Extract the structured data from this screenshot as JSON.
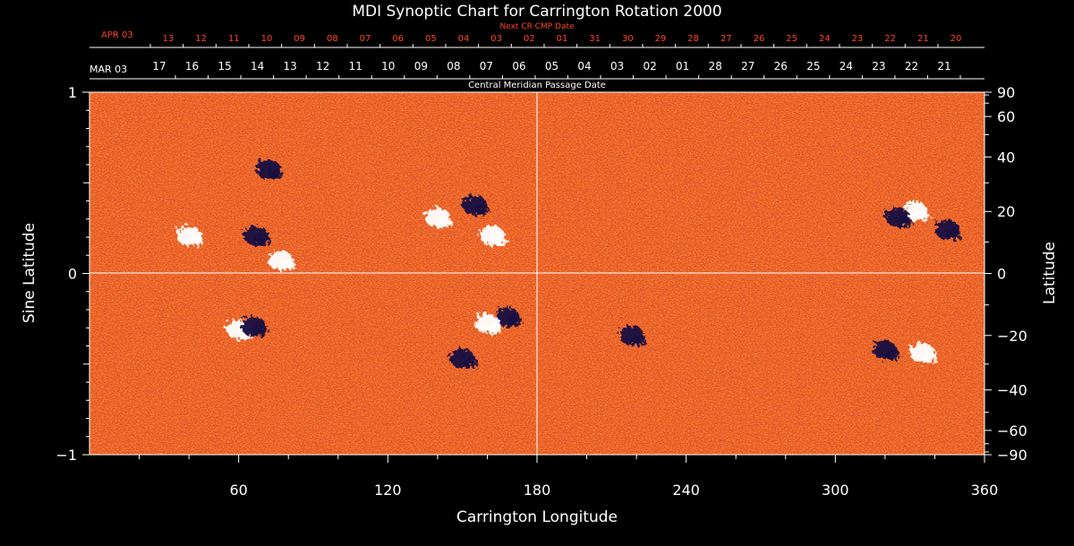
{
  "chart_data": {
    "type": "heatmap",
    "title": "MDI Synoptic Chart for Carrington Rotation 2000",
    "xlabel": "Carrington Longitude",
    "ylabel_left": "Sine Latitude",
    "ylabel_right": "Latitude",
    "top_label": "Central Meridian Passage Date",
    "next_label": "Next CR CMP Date",
    "xlim": [
      0,
      360
    ],
    "ylim": [
      -1,
      1
    ],
    "x_ticks": [
      60,
      120,
      180,
      240,
      300,
      360
    ],
    "y_ticks_left": [
      "1",
      "0",
      "−1"
    ],
    "y_ticks_right": [
      {
        "label": "90",
        "lat": 90
      },
      {
        "label": "60",
        "lat": 60
      },
      {
        "label": "40",
        "lat": 40
      },
      {
        "label": "20",
        "lat": 20
      },
      {
        "label": "0",
        "lat": 0
      },
      {
        "label": "−20",
        "lat": -20
      },
      {
        "label": "−40",
        "lat": -40
      },
      {
        "label": "−60",
        "lat": -60
      },
      {
        "label": "−90",
        "lat": -90
      }
    ],
    "cmp_month_label": "MAR 03",
    "cmp_dates": [
      "17",
      "16",
      "15",
      "14",
      "13",
      "12",
      "11",
      "10",
      "09",
      "08",
      "07",
      "06",
      "05",
      "04",
      "03",
      "02",
      "01",
      "28",
      "27",
      "26",
      "25",
      "24",
      "23",
      "22",
      "21"
    ],
    "next_month_label": "APR 03",
    "next_dates": [
      "13",
      "12",
      "11",
      "10",
      "09",
      "08",
      "07",
      "06",
      "05",
      "04",
      "03",
      "02",
      "01",
      "31",
      "30",
      "29",
      "28",
      "27",
      "26",
      "25",
      "24",
      "23",
      "22",
      "21",
      "20"
    ],
    "colors": {
      "background": "#e8501a",
      "positive": "#ffffff",
      "negative": "#140a40",
      "axis": "#ffffff",
      "accent_red": "#ff4422"
    },
    "regions": [
      {
        "lon": 67,
        "lat": 12,
        "polarity": "negative"
      },
      {
        "lon": 77,
        "lat": 4,
        "polarity": "positive"
      },
      {
        "lon": 140,
        "lat": 18,
        "polarity": "positive"
      },
      {
        "lon": 162,
        "lat": 12,
        "polarity": "positive"
      },
      {
        "lon": 155,
        "lat": 22,
        "polarity": "negative"
      },
      {
        "lon": 60,
        "lat": -18,
        "polarity": "positive"
      },
      {
        "lon": 66,
        "lat": -17,
        "polarity": "negative"
      },
      {
        "lon": 168,
        "lat": -14,
        "polarity": "negative"
      },
      {
        "lon": 160,
        "lat": -16,
        "polarity": "positive"
      },
      {
        "lon": 218,
        "lat": -20,
        "polarity": "negative"
      },
      {
        "lon": 332,
        "lat": 20,
        "polarity": "positive"
      },
      {
        "lon": 325,
        "lat": 18,
        "polarity": "negative"
      },
      {
        "lon": 345,
        "lat": 14,
        "polarity": "negative"
      },
      {
        "lon": 320,
        "lat": -25,
        "polarity": "negative"
      },
      {
        "lon": 335,
        "lat": -26,
        "polarity": "positive"
      },
      {
        "lon": 150,
        "lat": -28,
        "polarity": "negative"
      },
      {
        "lon": 72,
        "lat": 35,
        "polarity": "negative"
      },
      {
        "lon": 40,
        "lat": 12,
        "polarity": "positive"
      }
    ]
  }
}
